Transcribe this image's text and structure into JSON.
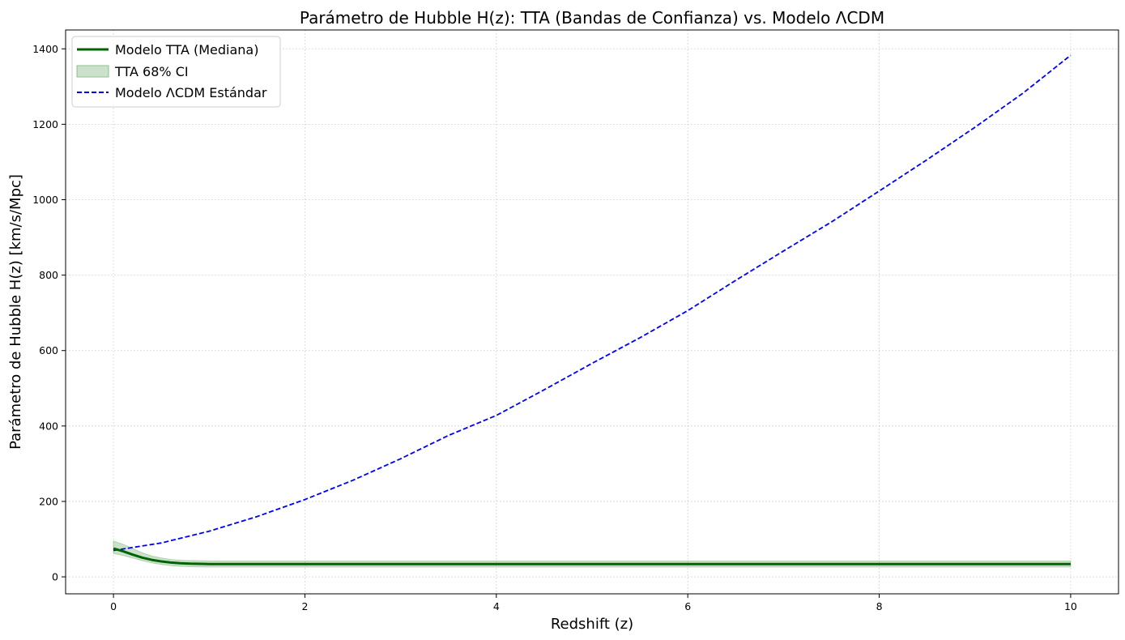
{
  "chart_data": {
    "type": "line",
    "title": "Parámetro de Hubble H(z): TTA (Bandas de Confianza) vs. Modelo ΛCDM",
    "xlabel": "Redshift (z)",
    "ylabel": "Parámetro de Hubble H(z) [km/s/Mpc]",
    "xlim": [
      -0.5,
      10.5
    ],
    "ylim": [
      -45,
      1450
    ],
    "xticks": [
      0,
      2,
      4,
      6,
      8,
      10
    ],
    "yticks": [
      0,
      200,
      400,
      600,
      800,
      1000,
      1200,
      1400
    ],
    "grid": true,
    "legend_position": "top-left",
    "series": [
      {
        "name": "Modelo TTA (Mediana)",
        "style": "solid",
        "color": "#006400",
        "x": [
          0,
          0.1,
          0.2,
          0.3,
          0.4,
          0.5,
          0.6,
          0.7,
          0.8,
          1.0,
          1.2,
          1.5,
          2,
          3,
          4,
          5,
          6,
          7,
          8,
          9,
          10
        ],
        "y": [
          75,
          68,
          59,
          51,
          45,
          41,
          38,
          36,
          35,
          34,
          34,
          34,
          34,
          34,
          34,
          34,
          34,
          34,
          34,
          34,
          34
        ]
      },
      {
        "name": "TTA 68% CI",
        "type": "band",
        "color": "#8fbc8f",
        "x": [
          0,
          0.1,
          0.2,
          0.3,
          0.4,
          0.5,
          0.6,
          0.7,
          0.8,
          1.0,
          1.2,
          1.5,
          2,
          3,
          4,
          5,
          6,
          7,
          8,
          9,
          10
        ],
        "lower": [
          62,
          57,
          50,
          43,
          37,
          33,
          30,
          28,
          27,
          26,
          26,
          26,
          26,
          26,
          26,
          26,
          26,
          26,
          26,
          26,
          26
        ],
        "upper": [
          95,
          86,
          75,
          64,
          55,
          50,
          46,
          44,
          43,
          42,
          42,
          42,
          42,
          42,
          42,
          42,
          42,
          42,
          42,
          42,
          42
        ]
      },
      {
        "name": "Modelo ΛCDM Estándar",
        "style": "dashed",
        "color": "#0000ff",
        "x": [
          0,
          0.5,
          1,
          1.5,
          2,
          2.5,
          3,
          3.5,
          4,
          4.5,
          5,
          5.5,
          6,
          6.5,
          7,
          7.5,
          8,
          8.5,
          9,
          9.5,
          10
        ],
        "y": [
          70,
          90,
          121,
          160,
          205,
          256,
          313,
          375,
          428,
          496,
          566,
          634,
          706,
          786,
          864,
          941,
          1023,
          1106,
          1192,
          1282,
          1383
        ]
      }
    ]
  }
}
